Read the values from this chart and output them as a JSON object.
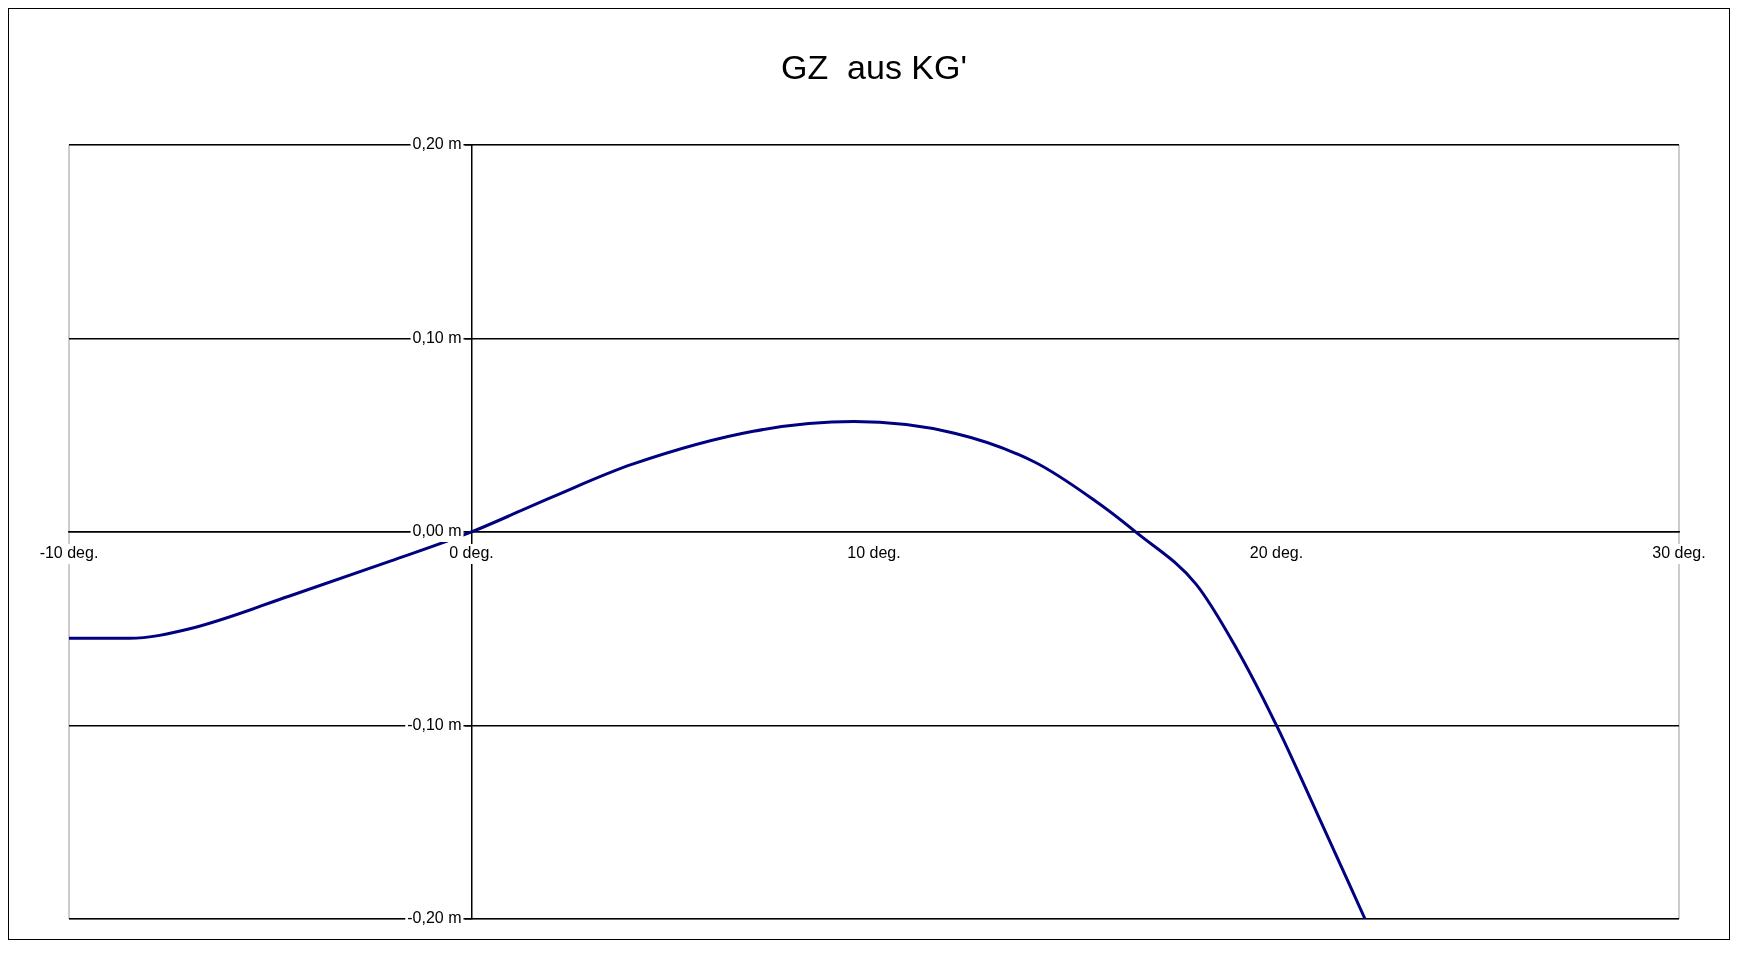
{
  "chart_data": {
    "type": "line",
    "title": "GZ  aus KG'",
    "x": [
      -10,
      -8.5,
      -7,
      -4.5,
      -2,
      0,
      2,
      4,
      7,
      9.5,
      12,
      14,
      15.5,
      16.5,
      18,
      19,
      20,
      21,
      22.2
    ],
    "series": [
      {
        "color": "#000080",
        "values": [
          -0.055,
          -0.055,
          -0.05,
          -0.033,
          -0.015,
          0,
          0.018,
          0.035,
          0.052,
          0.057,
          0.051,
          0.036,
          0.016,
          0,
          -0.027,
          -0.06,
          -0.1,
          -0.145,
          -0.2
        ]
      }
    ],
    "xlim": [
      -10,
      30
    ],
    "xticks": [
      {
        "value": -10,
        "label": "-10 deg."
      },
      {
        "value": 0,
        "label": "0 deg."
      },
      {
        "value": 10,
        "label": "10 deg."
      },
      {
        "value": 20,
        "label": "20 deg."
      },
      {
        "value": 30,
        "label": "30 deg."
      }
    ],
    "ylim": [
      -0.2,
      0.2
    ],
    "yticks": [
      {
        "value": -0.2,
        "label": "-0,20 m"
      },
      {
        "value": -0.1,
        "label": "-0,10 m"
      },
      {
        "value": 0,
        "label": "0,00 m"
      },
      {
        "value": 0.1,
        "label": "0,10 m"
      },
      {
        "value": 0.2,
        "label": "0,20 m"
      }
    ],
    "grid": "y",
    "legend": false,
    "marker": "none",
    "line_style": "solid"
  }
}
